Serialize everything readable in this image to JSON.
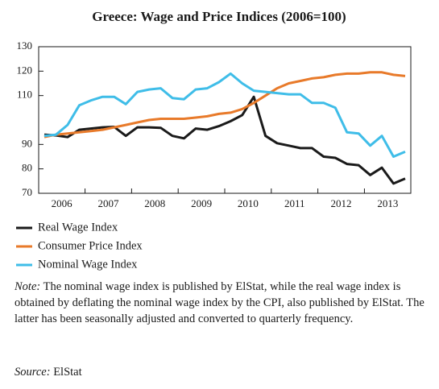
{
  "chart_data": {
    "type": "line",
    "title": "Greece: Wage and Price Indices (2006=100)",
    "categories": [
      "2006",
      null,
      null,
      null,
      "2007",
      null,
      null,
      null,
      "2008",
      null,
      null,
      null,
      "2009",
      null,
      null,
      null,
      "2010",
      null,
      null,
      null,
      "2011",
      null,
      null,
      null,
      "2012",
      null,
      null,
      null,
      "2013",
      null,
      null,
      null
    ],
    "series": [
      {
        "name": "Real Wage Index",
        "color": "#1a1a1a",
        "values": [
          94,
          93.7,
          93,
          96,
          96.5,
          97,
          97.2,
          93.5,
          97,
          97,
          96.8,
          93.5,
          92.5,
          96.5,
          96,
          97.5,
          99.5,
          102,
          109.5,
          93.5,
          90.5,
          89.5,
          88.5,
          88.5,
          85,
          84.5,
          82,
          81.5,
          77.5,
          80.5,
          74,
          76
        ]
      },
      {
        "name": "Consumer Price Index",
        "color": "#e87a2a",
        "values": [
          93,
          94,
          94.5,
          95,
          95.5,
          96,
          97,
          98,
          99,
          100,
          100.5,
          100.5,
          100.5,
          101,
          101.5,
          102.5,
          103,
          104.5,
          107,
          110,
          113,
          115,
          116,
          117,
          117.5,
          118.5,
          119,
          119,
          119.5,
          119.5,
          118.5,
          118
        ]
      },
      {
        "name": "Nominal Wage Index",
        "color": "#3fbde8",
        "values": [
          93.5,
          94,
          98,
          106,
          108,
          109.5,
          109.5,
          106.5,
          111.5,
          112.5,
          113,
          109,
          108.5,
          112.5,
          113,
          115.5,
          119,
          115,
          112,
          111.5,
          111,
          110.5,
          110.5,
          107,
          107,
          105,
          95,
          94.5,
          89.5,
          93.5,
          85,
          87
        ]
      }
    ],
    "ylim": [
      70,
      130
    ],
    "yticks": [
      70,
      80,
      90,
      110,
      120,
      130
    ],
    "grid": false,
    "note_label": "Note:",
    "note": "The nominal wage index is published by ElStat, while the real wage index is obtained by deflating the nominal wage index by the CPI, also published by ElStat. The latter has been seasonally adjusted and converted to quarterly frequency.",
    "source_label": "Source:",
    "source": "ElStat"
  }
}
